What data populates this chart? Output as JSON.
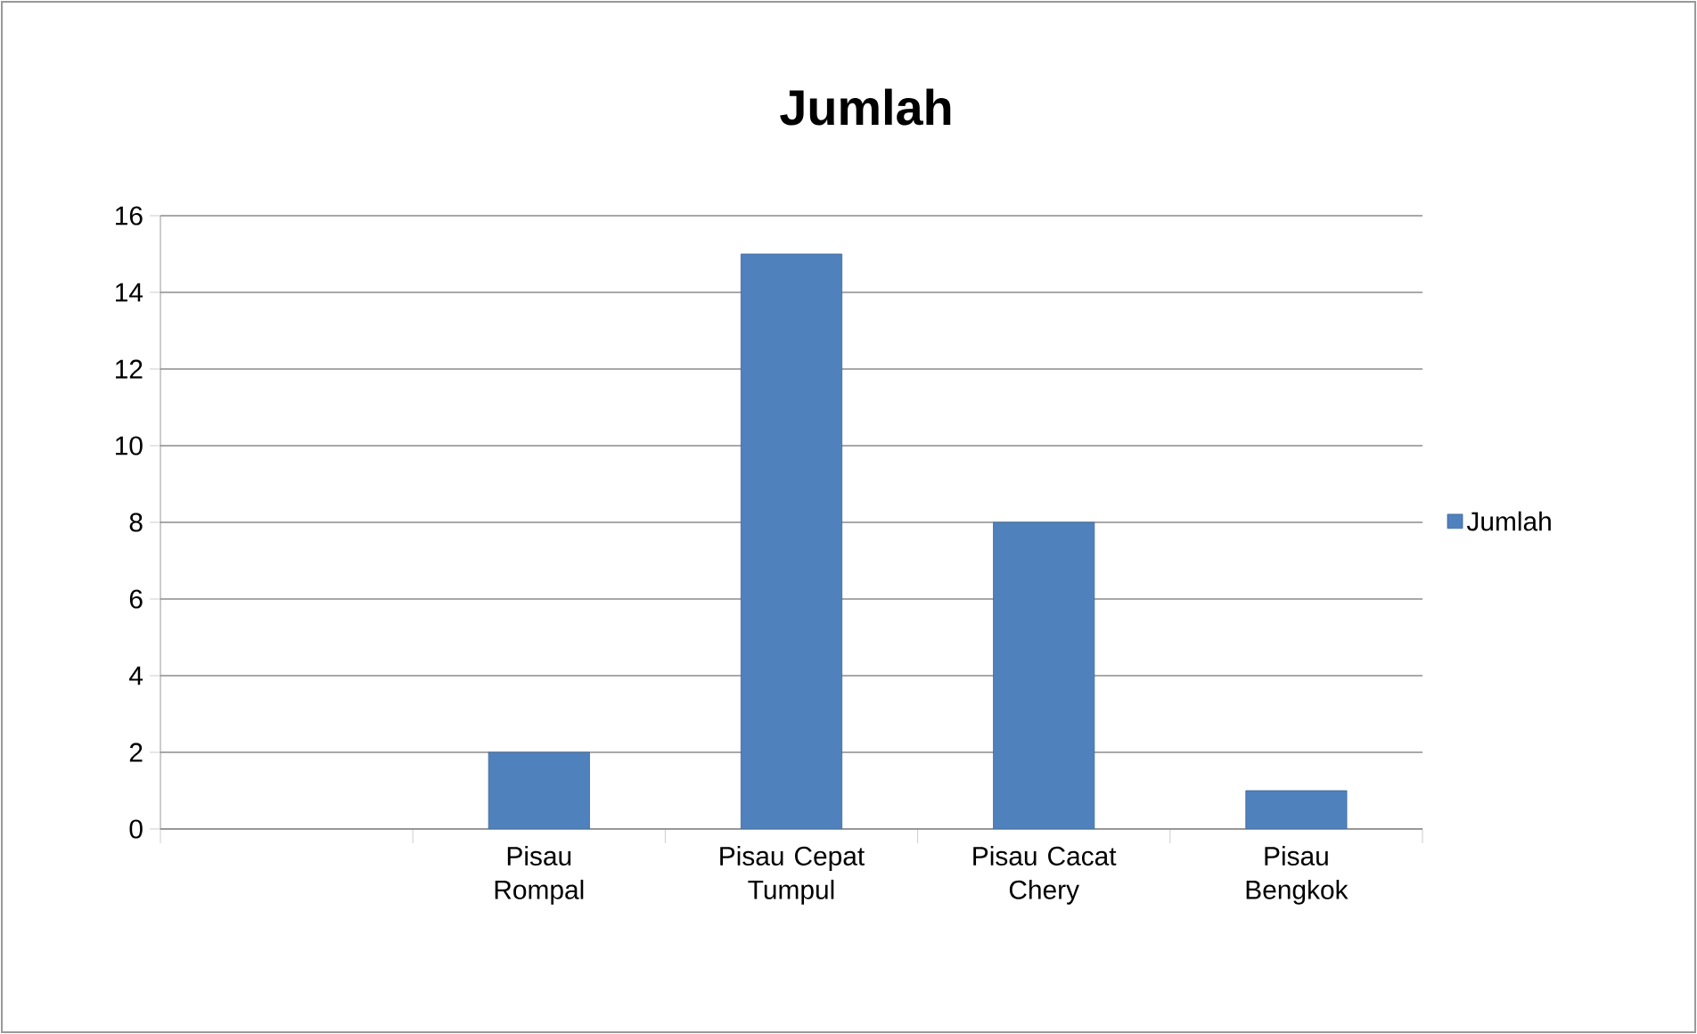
{
  "chart_data": {
    "type": "bar",
    "title": "Jumlah",
    "categories": [
      null,
      "Pisau Rompal",
      "Pisau  Cepat Tumpul",
      "Pisau Cacat Chery",
      "Pisau Bengkok"
    ],
    "series": [
      {
        "name": "Jumlah",
        "color": "#4f81bd",
        "values": [
          null,
          2,
          15,
          8,
          1
        ]
      }
    ],
    "ylim": [
      0,
      16
    ],
    "yticks": [
      0,
      2,
      4,
      6,
      8,
      10,
      12,
      14,
      16
    ],
    "grid": "y",
    "legend": "right"
  }
}
